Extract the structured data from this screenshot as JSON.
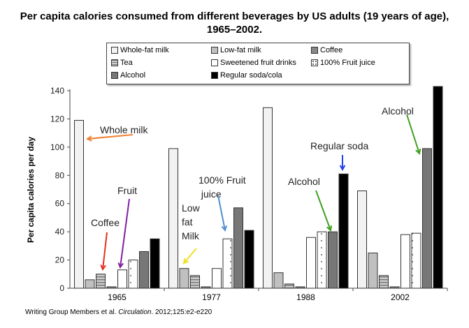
{
  "chart_data": {
    "type": "bar",
    "title": "Per capita calories consumed from different beverages by US adults (19 years of age), 1965–2002.",
    "ylabel": "Per capita calories per day",
    "xlabel": "",
    "ylim": [
      0,
      140
    ],
    "yticks": [
      0,
      20,
      40,
      60,
      80,
      100,
      120,
      140
    ],
    "categories": [
      "1965",
      "1977",
      "1988",
      "2002"
    ],
    "legend_position": "top",
    "grid": false,
    "series": [
      {
        "name": "Whole-fat milk",
        "color": "#f2f2f2",
        "values": [
          119,
          99,
          128,
          69
        ]
      },
      {
        "name": "Low-fat milk",
        "color": "#c0c0c0",
        "values": [
          6,
          14,
          11,
          25
        ]
      },
      {
        "name": "Tea",
        "color": "#aaaaaa",
        "pattern": "stripes",
        "values": [
          10,
          9,
          3,
          9
        ]
      },
      {
        "name": "Coffee",
        "color": "#888888",
        "values": [
          1,
          1,
          1,
          1
        ]
      },
      {
        "name": "Sweetened fruit drinks",
        "color": "#ffffff",
        "values": [
          13,
          14,
          36,
          38
        ]
      },
      {
        "name": "100% Fruit juice",
        "color": "#ffffff",
        "pattern": "dots",
        "values": [
          20,
          35,
          40,
          39
        ]
      },
      {
        "name": "Alcohol",
        "color": "#777777",
        "values": [
          26,
          57,
          40,
          99
        ]
      },
      {
        "name": "Regular soda/cola",
        "color": "#000000",
        "values": [
          35,
          41,
          81,
          143
        ]
      }
    ],
    "legend_order": [
      0,
      1,
      3,
      2,
      4,
      5,
      6,
      7
    ],
    "annotations": [
      {
        "text": "Whole milk",
        "color": "#f08030"
      },
      {
        "text": "Coffee",
        "color": "#e83020"
      },
      {
        "text": "Fruit",
        "color": "#8020a0"
      },
      {
        "text": "Low fat Milk",
        "color": "#f0e020"
      },
      {
        "text": "100% Fruit juice",
        "color": "#5090d0"
      },
      {
        "text": "Alcohol",
        "color": "#40a020"
      },
      {
        "text": "Regular soda",
        "color": "#2040f0"
      },
      {
        "text": "Alcohol",
        "color": "#40a020"
      }
    ]
  },
  "citation": {
    "authors": "Writing Group Members et al. ",
    "journal": "Circulation",
    "rest": ". 2012;125:e2-e220"
  }
}
